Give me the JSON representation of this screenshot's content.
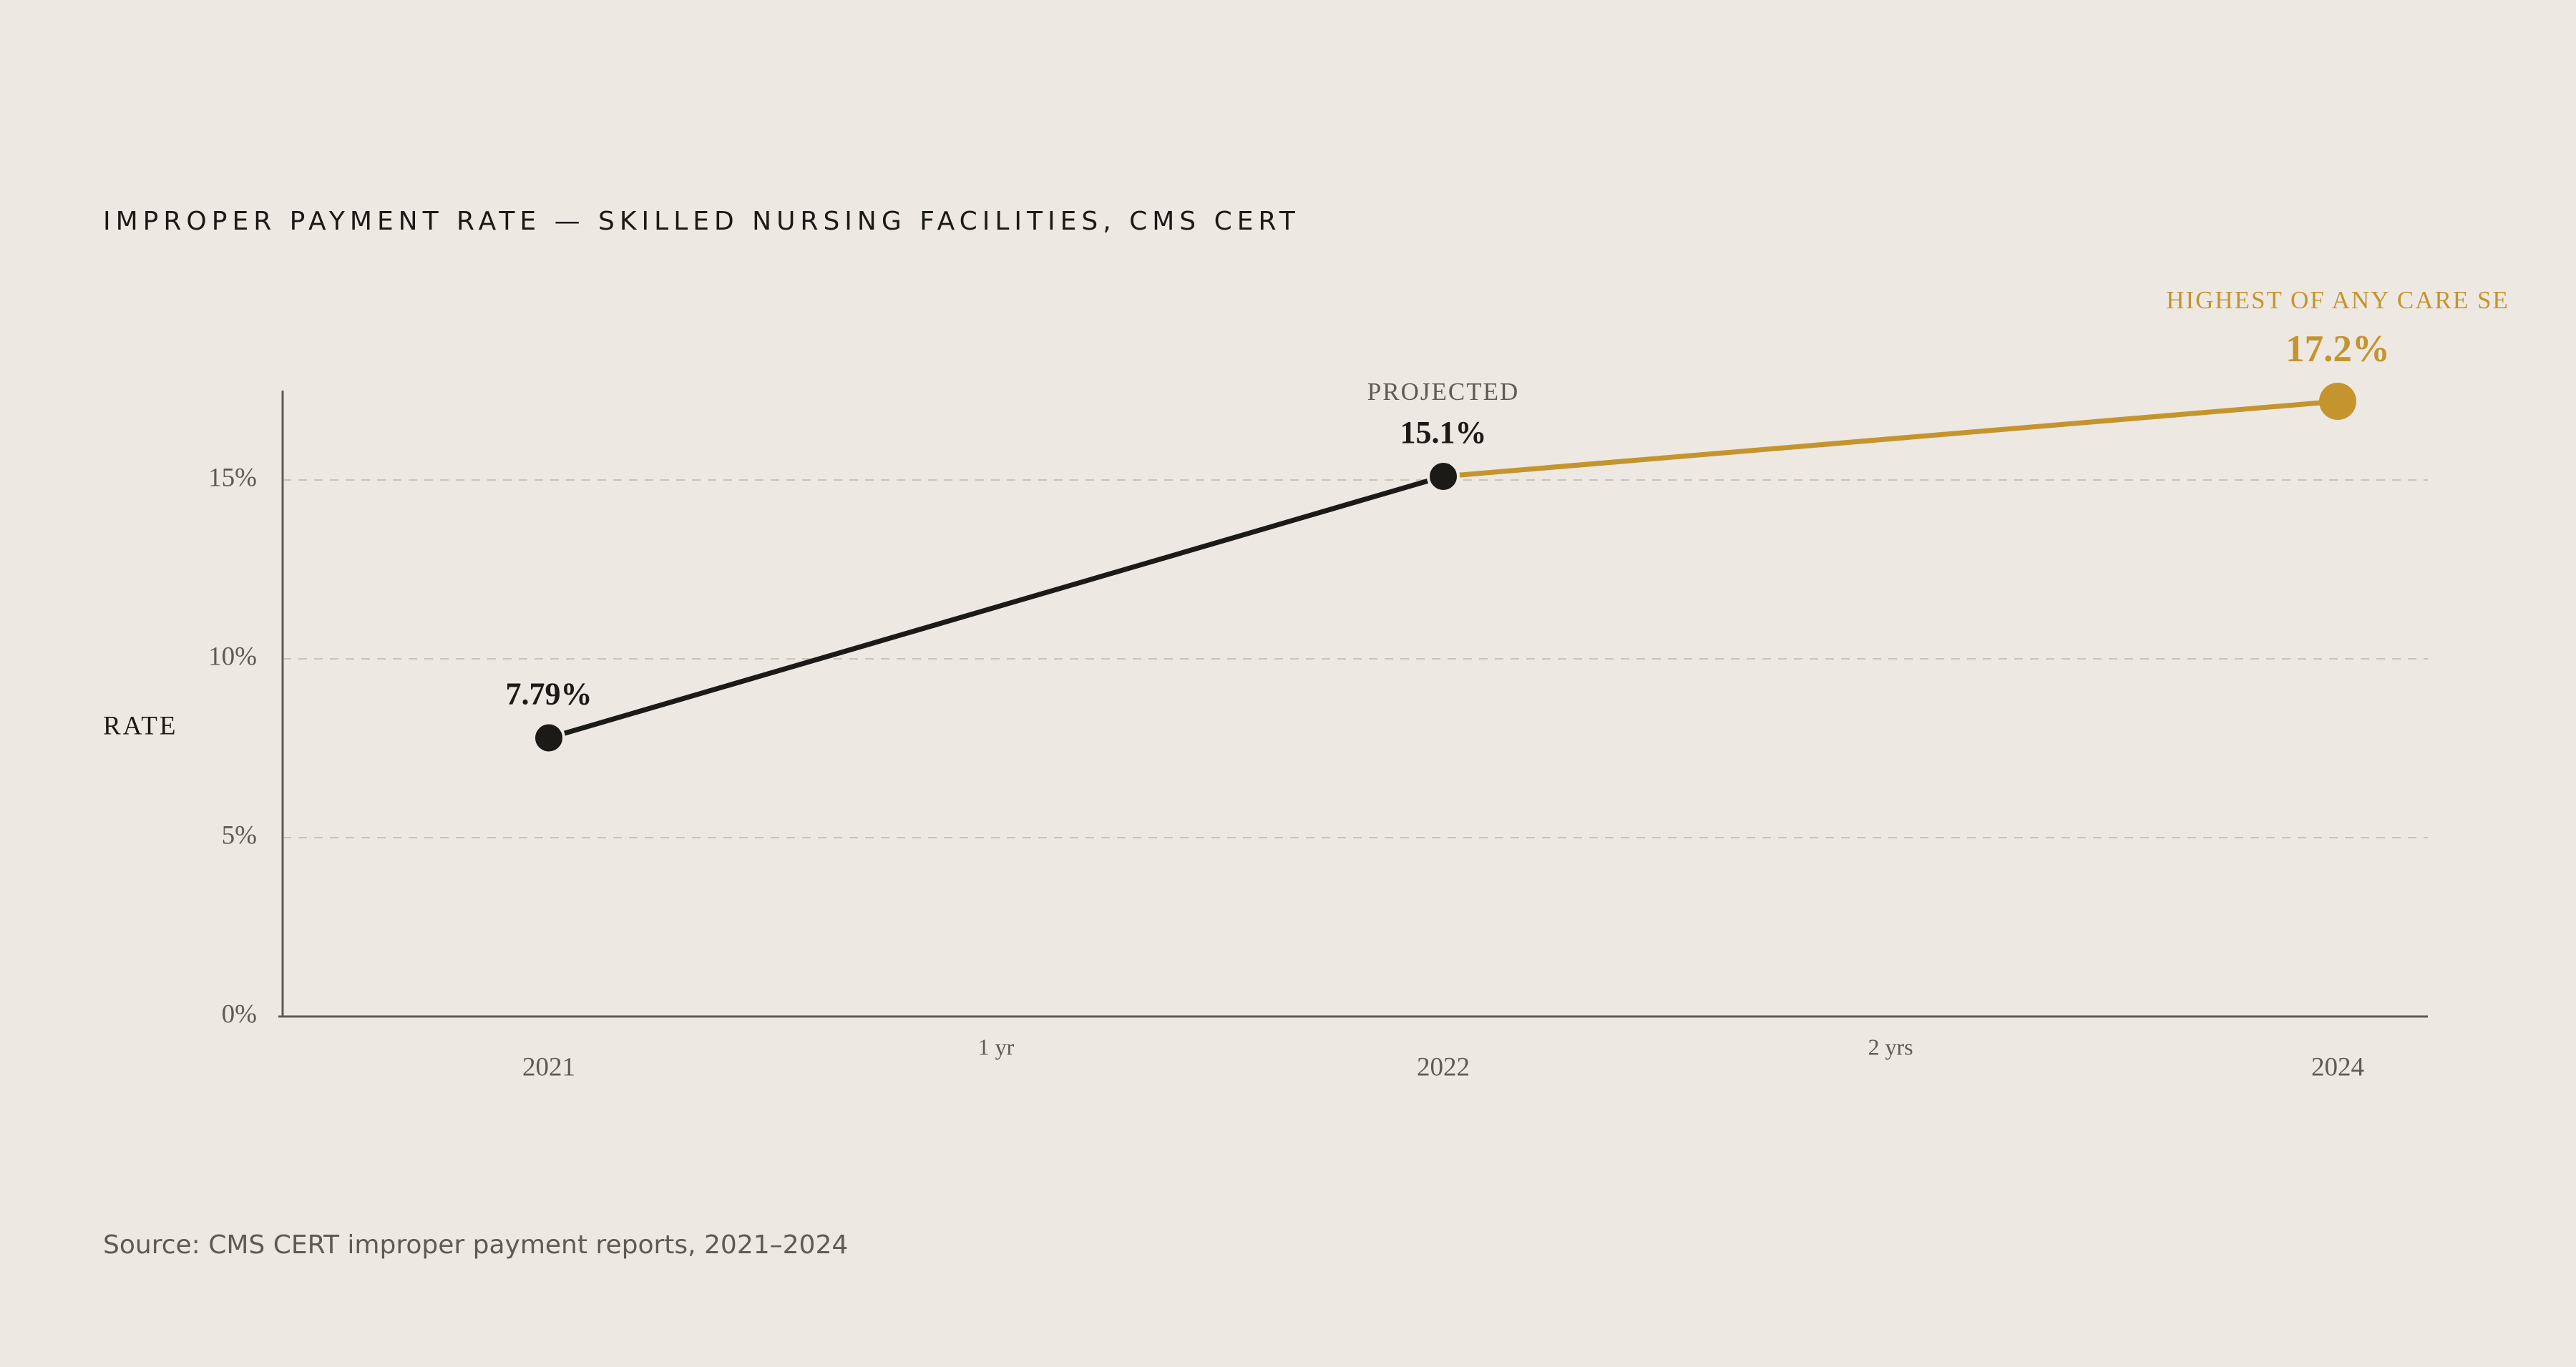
{
  "chart_data": {
    "type": "line",
    "title": "IMPROPER PAYMENT RATE — SKILLED NURSING FACILITIES, CMS CERT",
    "y_label": "RATE",
    "categories": [
      "2021",
      "2022",
      "2024"
    ],
    "gap_labels": [
      "1 yr",
      "2 yrs"
    ],
    "series": [
      {
        "values": [
          7.79,
          15.1,
          17.2
        ],
        "value_labels": [
          "7.79%",
          "15.1%",
          "17.2%"
        ],
        "point_notes": [
          null,
          "PROJECTED",
          "HIGHEST OF ANY CARE SE"
        ],
        "colors": [
          "#1c1a17",
          "#1c1a17",
          "#c4952f"
        ]
      }
    ],
    "ylim": [
      0,
      17.5
    ],
    "yticks": [
      {
        "value": 0,
        "label": "0%"
      },
      {
        "value": 5,
        "label": "5%"
      },
      {
        "value": 10,
        "label": "10%"
      },
      {
        "value": 15,
        "label": "15%"
      }
    ],
    "grid": true,
    "source": "Source: CMS CERT improper payment reports, 2021–2024"
  }
}
